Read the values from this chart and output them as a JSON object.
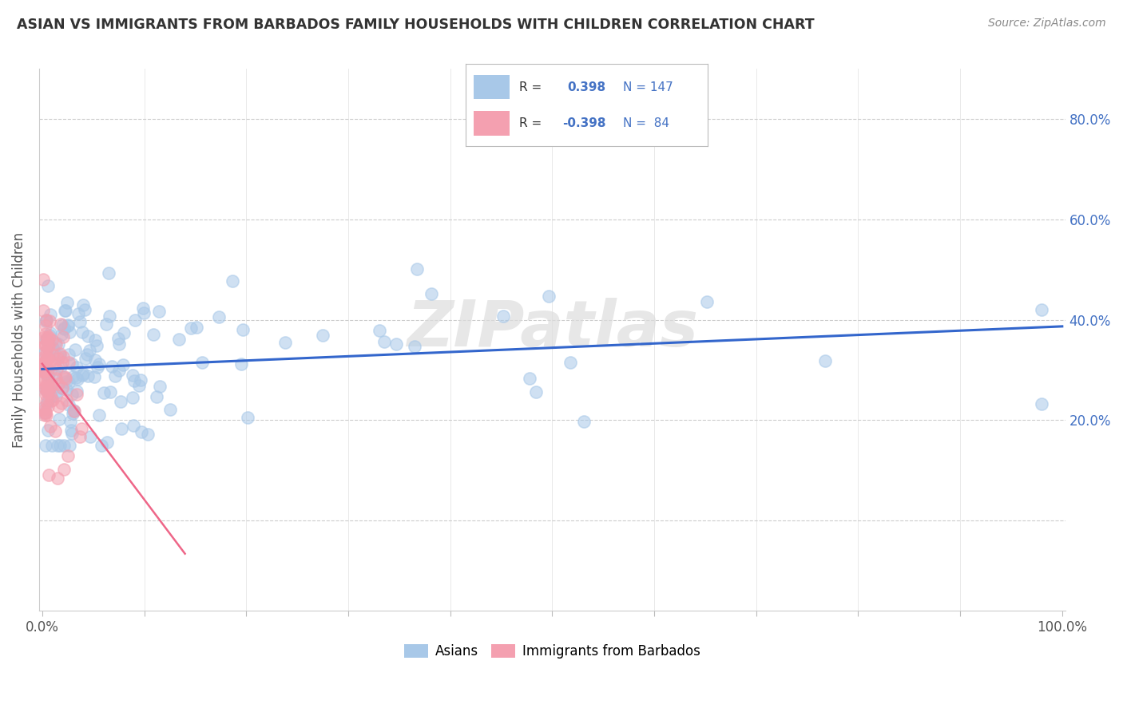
{
  "title": "ASIAN VS IMMIGRANTS FROM BARBADOS FAMILY HOUSEHOLDS WITH CHILDREN CORRELATION CHART",
  "source": "Source: ZipAtlas.com",
  "ylabel": "Family Households with Children",
  "blue_color": "#A8C8E8",
  "pink_color": "#F4A0B0",
  "blue_line_color": "#3366CC",
  "pink_line_color": "#EE6688",
  "title_color": "#333333",
  "watermark": "ZIPatlas",
  "background_color": "#ffffff",
  "grid_color": "#cccccc",
  "right_tick_color": "#4472C4",
  "legend_text_color": "#333333",
  "legend_val_color": "#4472C4"
}
